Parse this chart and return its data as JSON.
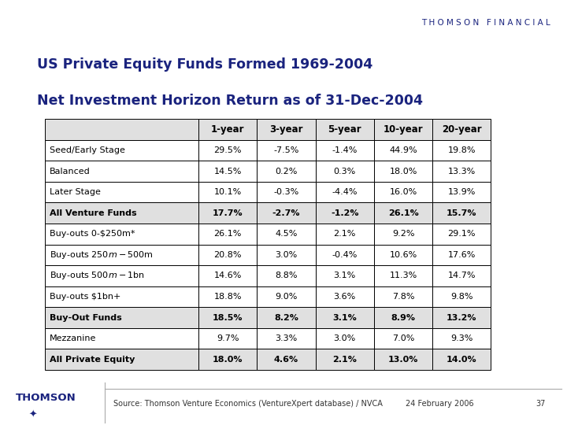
{
  "title_line1": "US Private Equity Funds Formed 1969-2004",
  "title_line2": "Net Investment Horizon Return as of 31-Dec-2004",
  "header_row": [
    "",
    "1-year",
    "3-year",
    "5-year",
    "10-year",
    "20-year"
  ],
  "rows": [
    [
      "Seed/Early Stage",
      "29.5%",
      "-7.5%",
      "-1.4%",
      "44.9%",
      "19.8%"
    ],
    [
      "Balanced",
      "14.5%",
      "0.2%",
      "0.3%",
      "18.0%",
      "13.3%"
    ],
    [
      "Later Stage",
      "10.1%",
      "-0.3%",
      "-4.4%",
      "16.0%",
      "13.9%"
    ],
    [
      "All Venture Funds",
      "17.7%",
      "-2.7%",
      "-1.2%",
      "26.1%",
      "15.7%"
    ],
    [
      "Buy-outs 0-$250m*",
      "26.1%",
      "4.5%",
      "2.1%",
      "9.2%",
      "29.1%"
    ],
    [
      "Buy-outs $250m-$500m",
      "20.8%",
      "3.0%",
      "-0.4%",
      "10.6%",
      "17.6%"
    ],
    [
      "Buy-outs $500m-$1bn",
      "14.6%",
      "8.8%",
      "3.1%",
      "11.3%",
      "14.7%"
    ],
    [
      "Buy-outs $1bn+",
      "18.8%",
      "9.0%",
      "3.6%",
      "7.8%",
      "9.8%"
    ],
    [
      "Buy-Out Funds",
      "18.5%",
      "8.2%",
      "3.1%",
      "8.9%",
      "13.2%"
    ],
    [
      "Mezzanine",
      "9.7%",
      "3.3%",
      "3.0%",
      "7.0%",
      "9.3%"
    ],
    [
      "All Private Equity",
      "18.0%",
      "4.6%",
      "2.1%",
      "13.0%",
      "14.0%"
    ]
  ],
  "bold_rows": [
    3,
    8,
    10
  ],
  "top_bar_color": "#F5C400",
  "header_bg_color": "#E0E0E0",
  "title_color": "#1A237E",
  "text_color": "#000000",
  "border_color": "#000000",
  "footer_source": "Source: Thomson Venture Economics (VentureXpert database) / NVCA",
  "footer_date": "24 February 2006",
  "footer_page": "37",
  "thomson_financial_text": "T H O M S O N   F I N A N C I A L",
  "thomson_logo_text": "THOMSON",
  "background_color": "#FFFFFF"
}
